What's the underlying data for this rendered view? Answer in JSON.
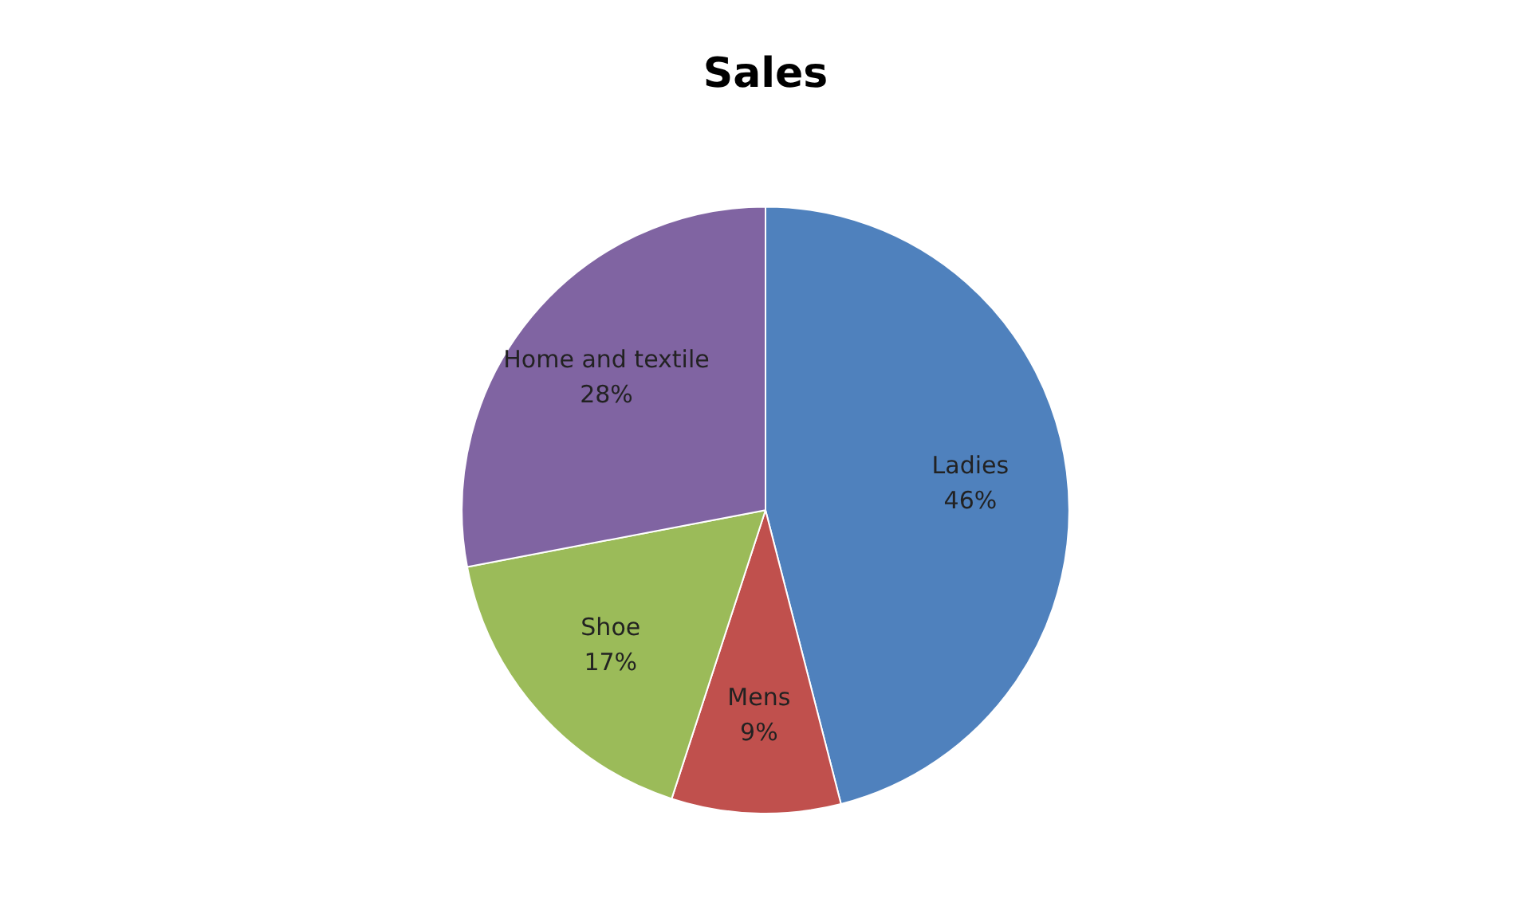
{
  "chart_data": {
    "type": "pie",
    "title": "Sales",
    "categories": [
      "Ladies",
      "Mens",
      "Shoe",
      "Home and textile"
    ],
    "values": [
      46,
      9,
      17,
      28
    ],
    "value_labels": [
      "46%",
      "9%",
      "17%",
      "28%"
    ],
    "colors": [
      "#4f81bd",
      "#c0504d",
      "#9bbb59",
      "#8064a2"
    ],
    "legend": false
  }
}
